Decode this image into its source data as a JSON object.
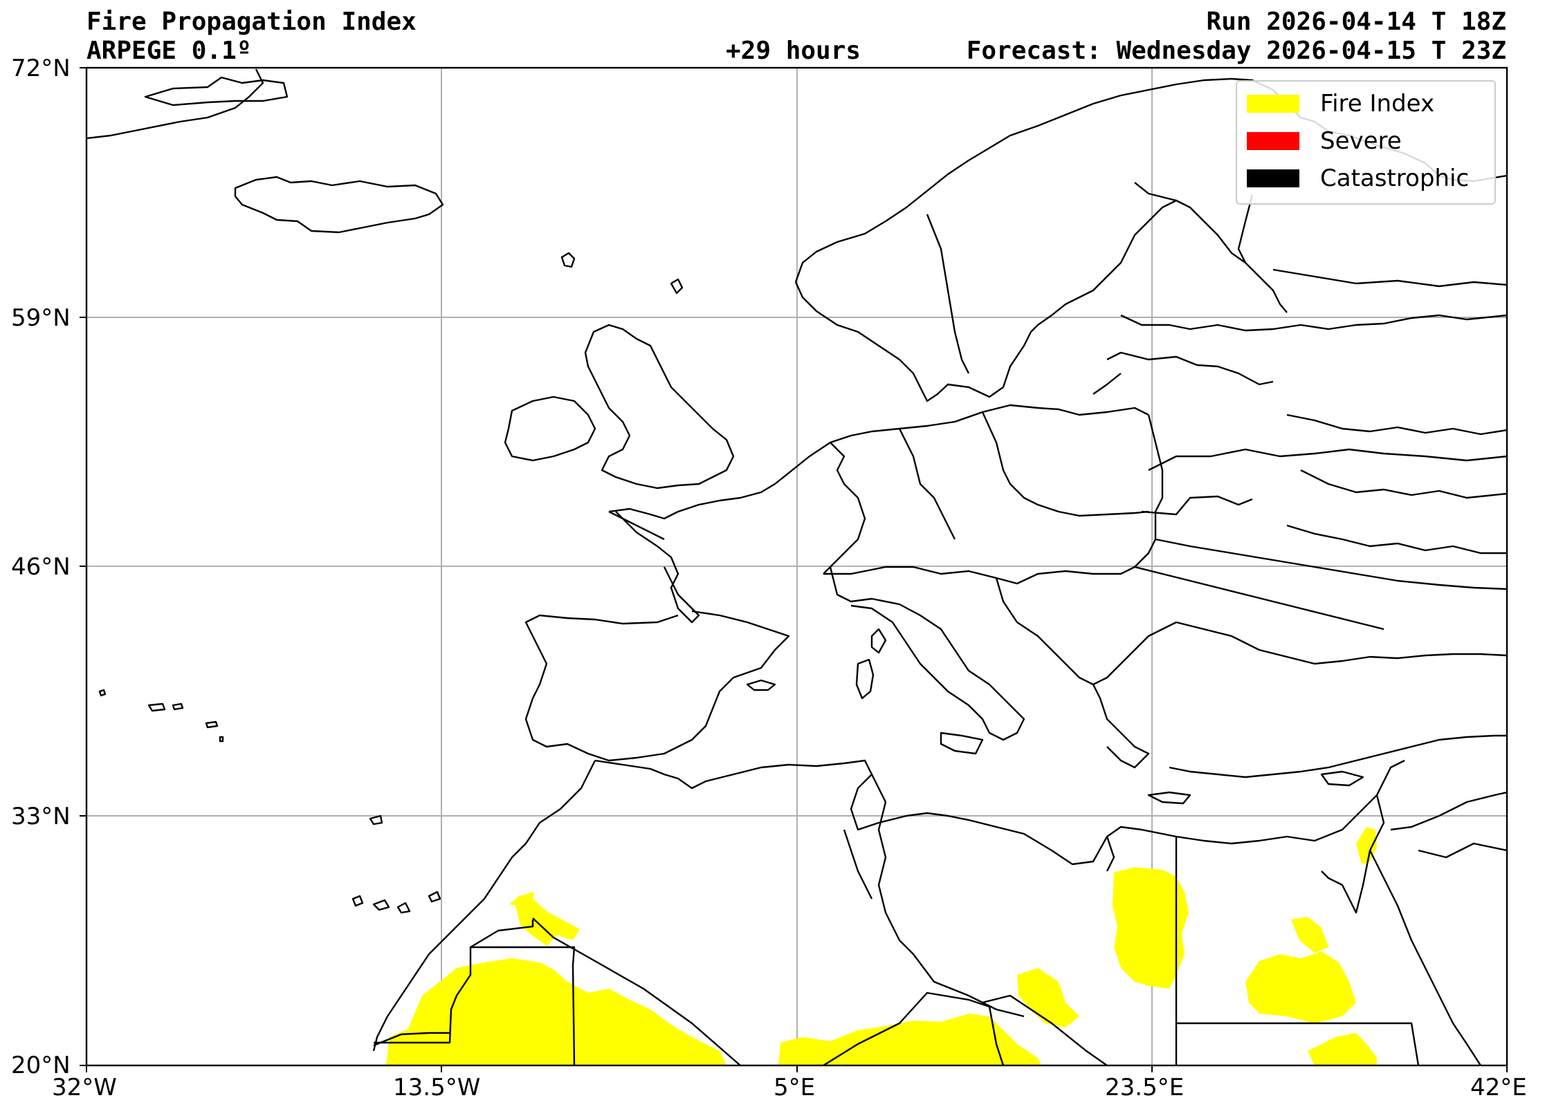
{
  "header": {
    "title": "Fire Propagation Index",
    "model": "ARPEGE 0.1º",
    "lead_time": "+29 hours",
    "run": "Run 2026-04-14 T 18Z",
    "forecast": "Forecast: Wednesday 2026-04-15 T 23Z"
  },
  "axes": {
    "lat_ticks": [
      "72°N",
      "59°N",
      "46°N",
      "33°N",
      "20°N"
    ],
    "lon_ticks": [
      "32°W",
      "13.5°W",
      "5°E",
      "23.5°E",
      "42°E"
    ]
  },
  "legend": {
    "items": [
      {
        "label": "Fire Index",
        "color": "#ffff00"
      },
      {
        "label": "Severe",
        "color": "#ff0000"
      },
      {
        "label": "Catastrophic",
        "color": "#000000"
      }
    ]
  },
  "colors": {
    "fire_index": "#ffff00",
    "severe": "#ff0000",
    "catastrophic": "#000000",
    "grid": "#b0b0b0",
    "coastline": "#000000"
  }
}
